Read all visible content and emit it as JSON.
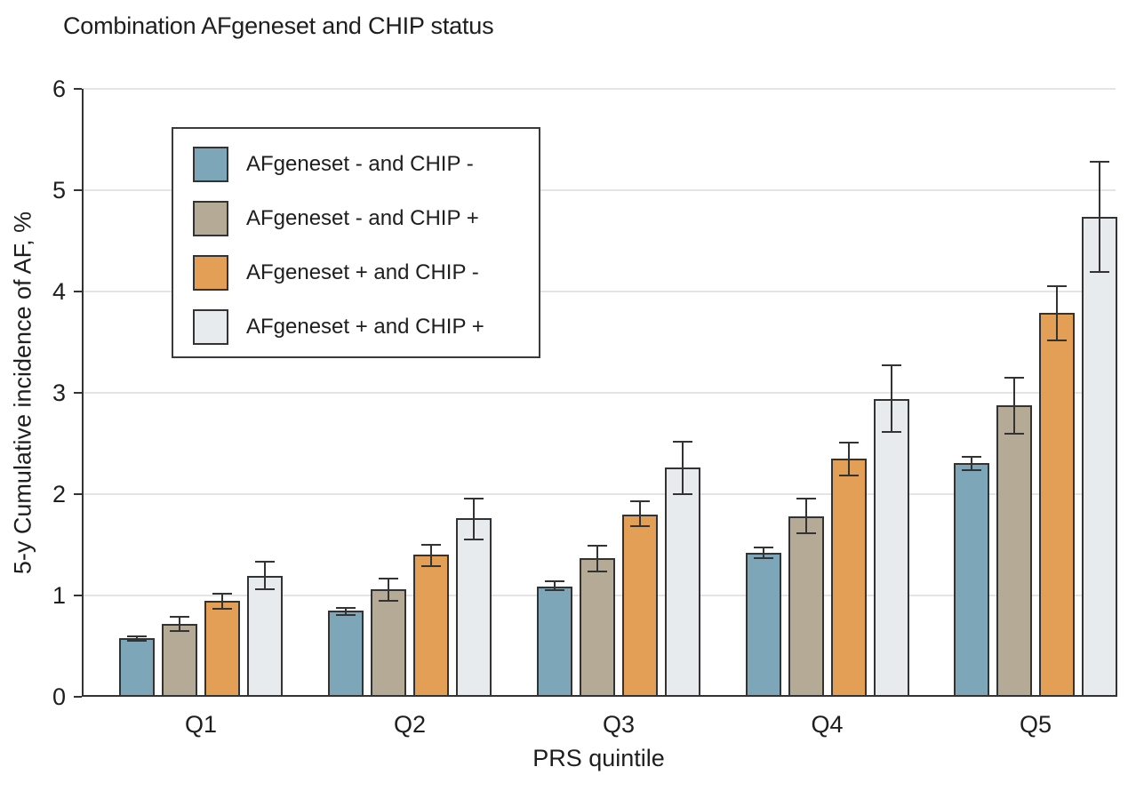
{
  "chart_data": {
    "type": "bar",
    "title": "Combination AFgeneset and CHIP status",
    "xlabel": "PRS quintile",
    "ylabel": "5-y Cumulative incidence of AF, %",
    "categories": [
      "Q1",
      "Q2",
      "Q3",
      "Q4",
      "Q5"
    ],
    "ylim": [
      0,
      6
    ],
    "yticks": [
      0,
      1,
      2,
      3,
      4,
      5,
      6
    ],
    "grid": true,
    "legend_position": "upper-left-inside",
    "error_bars": true,
    "series": [
      {
        "name": "AFgeneset - and CHIP -",
        "color": "#7DA7B9",
        "values": [
          0.58,
          0.85,
          1.09,
          1.42,
          2.31
        ],
        "ci_low": [
          0.55,
          0.81,
          1.05,
          1.37,
          2.24
        ],
        "ci_high": [
          0.6,
          0.88,
          1.14,
          1.47,
          2.37
        ]
      },
      {
        "name": "AFgeneset - and CHIP +",
        "color": "#B4AA96",
        "values": [
          0.72,
          1.06,
          1.37,
          1.78,
          2.88
        ],
        "ci_low": [
          0.65,
          0.95,
          1.24,
          1.61,
          2.6
        ],
        "ci_high": [
          0.79,
          1.17,
          1.49,
          1.96,
          3.15
        ]
      },
      {
        "name": "AFgeneset + and CHIP -",
        "color": "#E29F55",
        "values": [
          0.95,
          1.4,
          1.8,
          2.35,
          3.79
        ],
        "ci_low": [
          0.87,
          1.29,
          1.68,
          2.18,
          3.52
        ],
        "ci_high": [
          1.02,
          1.5,
          1.93,
          2.51,
          4.05
        ]
      },
      {
        "name": "AFgeneset + and CHIP +",
        "color": "#E7EBEE",
        "values": [
          1.19,
          1.76,
          2.26,
          2.94,
          4.74
        ],
        "ci_low": [
          1.06,
          1.55,
          2.0,
          2.61,
          4.19
        ],
        "ci_high": [
          1.33,
          1.96,
          2.52,
          3.27,
          5.28
        ]
      }
    ],
    "colors": {
      "axis": "#333333",
      "grid": "#E4E4E4",
      "bar_edge": "#333333",
      "error_bar": "#333333",
      "text": "#1e1e1e"
    }
  }
}
